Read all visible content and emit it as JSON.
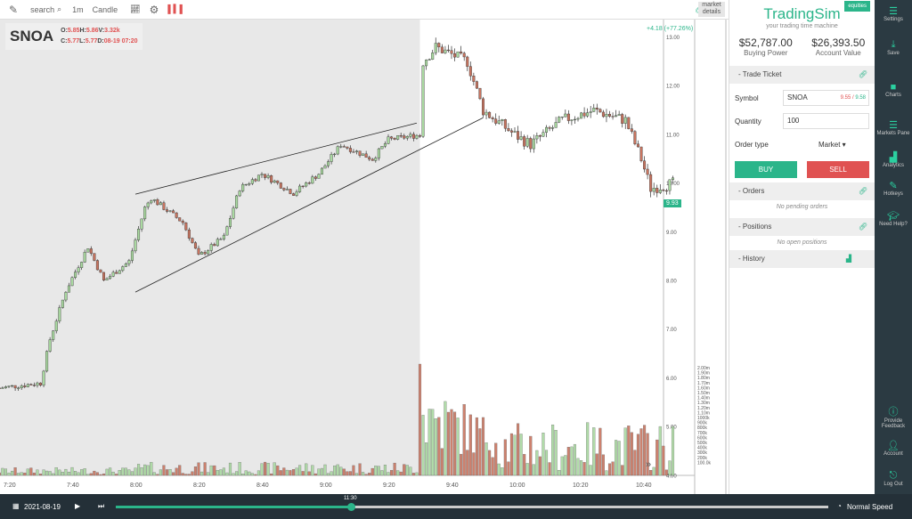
{
  "toolbar": {
    "search": "search",
    "interval": "1m",
    "chart_type": "Candle",
    "market_details": "market details"
  },
  "legend": {
    "symbol": "SNOA",
    "o_label": "O:",
    "o": "5.85",
    "h_label": "H:",
    "h": "5.86",
    "v_label": "V:",
    "v": "3.32k",
    "c_label": "C:",
    "c": "5.77",
    "l_label": "L:",
    "l": "5.77",
    "d_label": "D:",
    "d": "08-19 07:20"
  },
  "change": "+4.18 (+77.26%)",
  "last_price": "9.93",
  "colors": {
    "up": "#a9d9a0",
    "down": "#c8745f",
    "accent": "#2bb58a",
    "sell": "#e05252",
    "shade": "#e8e8e8"
  },
  "chart_data": {
    "type": "candlestick",
    "price_ticks": [
      "13.00",
      "12.00",
      "11.00",
      "10.00",
      "9.00",
      "8.00",
      "7.00",
      "6.00",
      "5.00",
      "4.00"
    ],
    "volume_ticks": [
      "2.00m",
      "1.90m",
      "1.80m",
      "1.70m",
      "1.60m",
      "1.50m",
      "1.40m",
      "1.30m",
      "1.20m",
      "1.10m",
      "1000k",
      "900k",
      "800k",
      "700k",
      "600k",
      "500k",
      "400k",
      "300k",
      "200k",
      "100.0k"
    ],
    "time_ticks": [
      "7:20",
      "7:40",
      "8:00",
      "8:20",
      "8:40",
      "9:00",
      "9:20",
      "9:40",
      "10:00",
      "10:20",
      "10:40"
    ],
    "price_range": [
      4,
      13.35
    ],
    "premarket_until": "9:30",
    "close_path": [
      [
        "7:17",
        5.8
      ],
      [
        "7:30",
        5.9
      ],
      [
        "7:33",
        6.8
      ],
      [
        "7:38",
        7.8
      ],
      [
        "7:45",
        8.7
      ],
      [
        "7:50",
        8.0
      ],
      [
        "7:58",
        8.4
      ],
      [
        "8:03",
        9.5
      ],
      [
        "8:05",
        9.7
      ],
      [
        "8:15",
        9.2
      ],
      [
        "8:20",
        8.5
      ],
      [
        "8:28",
        8.9
      ],
      [
        "8:33",
        9.9
      ],
      [
        "8:40",
        10.2
      ],
      [
        "8:50",
        9.8
      ],
      [
        "8:58",
        10.2
      ],
      [
        "9:05",
        10.8
      ],
      [
        "9:15",
        10.5
      ],
      [
        "9:20",
        10.9
      ],
      [
        "9:30",
        11.0
      ],
      [
        "9:31",
        12.5
      ],
      [
        "9:35",
        12.8
      ],
      [
        "9:45",
        12.5
      ],
      [
        "9:50",
        11.5
      ],
      [
        "10:00",
        11.0
      ],
      [
        "10:05",
        10.8
      ],
      [
        "10:15",
        11.3
      ],
      [
        "10:25",
        11.5
      ],
      [
        "10:35",
        11.3
      ],
      [
        "10:40",
        10.5
      ],
      [
        "10:43",
        9.9
      ],
      [
        "10:50",
        10.0
      ]
    ],
    "trendlines": [
      [
        [
          "8:00",
          9.78
        ],
        [
          "9:29",
          11.24
        ]
      ],
      [
        [
          "8:00",
          7.77
        ],
        [
          "9:50",
          11.35
        ]
      ]
    ]
  },
  "ticket": {
    "brand": "TradingSim",
    "tag": "equities",
    "tagline": "your trading time machine",
    "buying_power": "$52,787.00",
    "buying_power_label": "Buying Power",
    "account_value": "$26,393.50",
    "account_value_label": "Account Value",
    "title": "Trade Ticket",
    "symbol_label": "Symbol",
    "symbol": "SNOA",
    "bid": "9.55",
    "ask": "9.58",
    "quantity_label": "Quantity",
    "quantity": "100",
    "order_type_label": "Order type",
    "order_type": "Market ▾",
    "buy": "BUY",
    "sell": "SELL"
  },
  "orders": {
    "title": "Orders",
    "empty": "No pending orders"
  },
  "positions": {
    "title": "Positions",
    "empty": "No open positions"
  },
  "history": {
    "title": "History"
  },
  "sidebar": [
    {
      "label": "Settings",
      "icon": "menu-icon"
    },
    {
      "label": "Save",
      "icon": "download-icon"
    },
    {
      "label": "Charts",
      "icon": "chart-icon"
    },
    {
      "label": "Markets Pane",
      "icon": "menu-icon"
    },
    {
      "label": "Analytics",
      "icon": "bar-chart-icon"
    },
    {
      "label": "Hotkeys",
      "icon": "edit-icon"
    },
    {
      "label": "Need Help?",
      "icon": "graduation-icon"
    },
    {
      "label": "Provide Feedback",
      "icon": "info-icon"
    },
    {
      "label": "Account",
      "icon": "user-icon"
    },
    {
      "label": "Log Out",
      "icon": "logout-icon"
    }
  ],
  "playback": {
    "date": "2021-08-19",
    "time": "11:30",
    "progress": 0.33,
    "speed": "Normal Speed"
  }
}
